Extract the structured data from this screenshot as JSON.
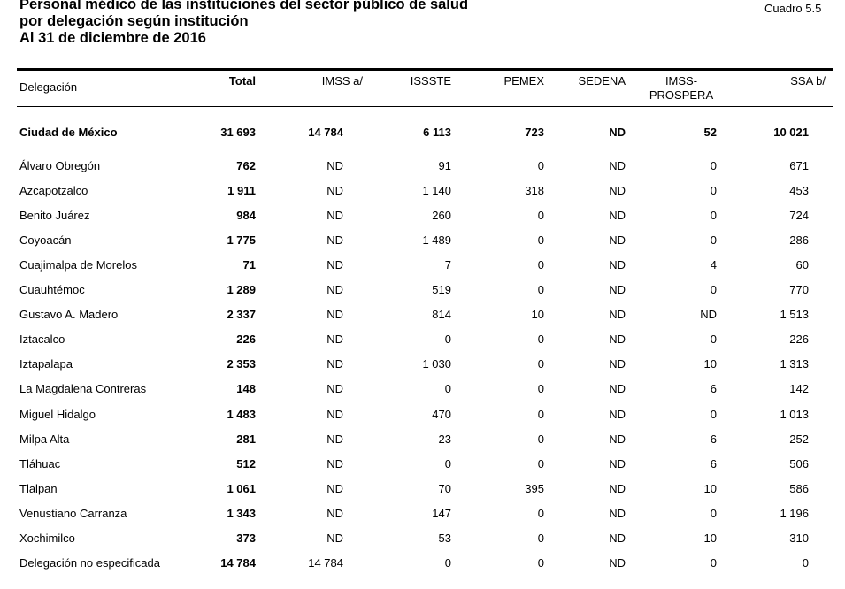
{
  "title": {
    "line1": "Personal médico de las instituciones del sector público de salud",
    "line2": "por delegación según institución",
    "line3": "Al 31 de diciembre de 2016"
  },
  "cuadro": "Cuadro 5.5",
  "columns": {
    "delegacion": "Delegación",
    "total": "Total",
    "imss": "IMSS  a/",
    "issste": "ISSSTE",
    "pemex": "PEMEX",
    "sedena": "SEDENA",
    "imss_prospera_1": "IMSS-",
    "imss_prospera_2": "PROSPERA",
    "ssa": "SSA  b/"
  },
  "rows": [
    {
      "name": "Ciudad de México",
      "total": "31 693",
      "imss": "14 784",
      "issste": "6 113",
      "pemex": "723",
      "sedena": "ND",
      "prospera": "52",
      "ssa": "10 021"
    },
    {
      "name": "Álvaro Obregón",
      "total": "762",
      "imss": "ND",
      "issste": "91",
      "pemex": "0",
      "sedena": "ND",
      "prospera": "0",
      "ssa": "671"
    },
    {
      "name": "Azcapotzalco",
      "total": "1 911",
      "imss": "ND",
      "issste": "1 140",
      "pemex": "318",
      "sedena": "ND",
      "prospera": "0",
      "ssa": "453"
    },
    {
      "name": "Benito Juárez",
      "total": "984",
      "imss": "ND",
      "issste": "260",
      "pemex": "0",
      "sedena": "ND",
      "prospera": "0",
      "ssa": "724"
    },
    {
      "name": "Coyoacán",
      "total": "1 775",
      "imss": "ND",
      "issste": "1 489",
      "pemex": "0",
      "sedena": "ND",
      "prospera": "0",
      "ssa": "286"
    },
    {
      "name": "Cuajimalpa de Morelos",
      "total": "71",
      "imss": "ND",
      "issste": "7",
      "pemex": "0",
      "sedena": "ND",
      "prospera": "4",
      "ssa": "60"
    },
    {
      "name": "Cuauhtémoc",
      "total": "1 289",
      "imss": "ND",
      "issste": "519",
      "pemex": "0",
      "sedena": "ND",
      "prospera": "0",
      "ssa": "770"
    },
    {
      "name": "Gustavo A. Madero",
      "total": "2 337",
      "imss": "ND",
      "issste": "814",
      "pemex": "10",
      "sedena": "ND",
      "prospera": "ND",
      "ssa": "1 513"
    },
    {
      "name": "Iztacalco",
      "total": "226",
      "imss": "ND",
      "issste": "0",
      "pemex": "0",
      "sedena": "ND",
      "prospera": "0",
      "ssa": "226"
    },
    {
      "name": "Iztapalapa",
      "total": "2 353",
      "imss": "ND",
      "issste": "1 030",
      "pemex": "0",
      "sedena": "ND",
      "prospera": "10",
      "ssa": "1 313"
    },
    {
      "name": "La Magdalena Contreras",
      "total": "148",
      "imss": "ND",
      "issste": "0",
      "pemex": "0",
      "sedena": "ND",
      "prospera": "6",
      "ssa": "142"
    },
    {
      "name": "Miguel Hidalgo",
      "total": "1 483",
      "imss": "ND",
      "issste": "470",
      "pemex": "0",
      "sedena": "ND",
      "prospera": "0",
      "ssa": "1 013"
    },
    {
      "name": "Milpa Alta",
      "total": "281",
      "imss": "ND",
      "issste": "23",
      "pemex": "0",
      "sedena": "ND",
      "prospera": "6",
      "ssa": "252"
    },
    {
      "name": "Tláhuac",
      "total": "512",
      "imss": "ND",
      "issste": "0",
      "pemex": "0",
      "sedena": "ND",
      "prospera": "6",
      "ssa": "506"
    },
    {
      "name": "Tlalpan",
      "total": "1 061",
      "imss": "ND",
      "issste": "70",
      "pemex": "395",
      "sedena": "ND",
      "prospera": "10",
      "ssa": "586"
    },
    {
      "name": "Venustiano Carranza",
      "total": "1 343",
      "imss": "ND",
      "issste": "147",
      "pemex": "0",
      "sedena": "ND",
      "prospera": "0",
      "ssa": "1 196"
    },
    {
      "name": "Xochimilco",
      "total": "373",
      "imss": "ND",
      "issste": "53",
      "pemex": "0",
      "sedena": "ND",
      "prospera": "10",
      "ssa": "310"
    },
    {
      "name": "Delegación no especificada",
      "total": "14 784",
      "imss": "14 784",
      "issste": "0",
      "pemex": "0",
      "sedena": "ND",
      "prospera": "0",
      "ssa": "0"
    }
  ]
}
